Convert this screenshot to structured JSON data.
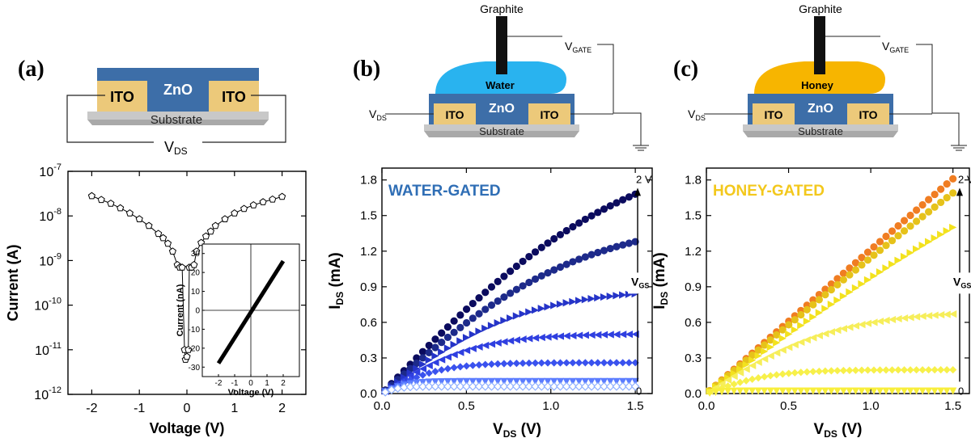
{
  "panels": {
    "a": {
      "label": "(a)",
      "device": {
        "layer_top": "ZnO",
        "electrode_left": "ITO",
        "electrode_right": "ITO",
        "substrate": "Substrate",
        "bias": "V",
        "bias_sub": "DS"
      }
    },
    "b": {
      "label": "(b)",
      "device": {
        "graphite": "Graphite",
        "gate": "V",
        "gate_sub": "GATE",
        "liquid": "Water",
        "layer_top": "ZnO",
        "electrode_left": "ITO",
        "electrode_right": "ITO",
        "substrate": "Substrate",
        "bias": "V",
        "bias_sub": "DS"
      }
    },
    "c": {
      "label": "(c)",
      "device": {
        "graphite": "Graphite",
        "gate": "V",
        "gate_sub": "GATE",
        "liquid": "Honey",
        "layer_top": "ZnO",
        "electrode_left": "ITO",
        "electrode_right": "ITO",
        "substrate": "Substrate",
        "bias": "V",
        "bias_sub": "DS"
      }
    }
  },
  "colors": {
    "zno": "#3d6ea8",
    "ito": "#ecc97a",
    "substrate": "#c8c8c8",
    "water": "#29b3ef",
    "honey": "#f7b500",
    "water_title": "#2f6eb5",
    "honey_title": "#f3c81c"
  },
  "chart_data": [
    {
      "id": "a",
      "type": "scatter",
      "xlabel": "Voltage (V)",
      "ylabel": "Current (A)",
      "yscale": "log",
      "xlim": [
        -2.5,
        2.5
      ],
      "ylim": [
        1e-12,
        1e-07
      ],
      "xticks": [
        "-2",
        "-1",
        "0",
        "1",
        "2"
      ],
      "yticks": [
        {
          "base": "10",
          "exp": "-12"
        },
        {
          "base": "10",
          "exp": "-11"
        },
        {
          "base": "10",
          "exp": "-10"
        },
        {
          "base": "10",
          "exp": "-9"
        },
        {
          "base": "10",
          "exp": "-8"
        },
        {
          "base": "10",
          "exp": "-7"
        }
      ],
      "series": [
        {
          "marker": "open-pentagon",
          "x": [
            -2.0,
            -1.8,
            -1.6,
            -1.4,
            -1.2,
            -1.0,
            -0.8,
            -0.6,
            -0.5,
            -0.4,
            -0.3,
            -0.2,
            -0.15,
            -0.1,
            -0.05,
            -0.03,
            0.0,
            0.03,
            0.05,
            0.1,
            0.15,
            0.2,
            0.3,
            0.4,
            0.5,
            0.6,
            0.8,
            1.0,
            1.2,
            1.4,
            1.6,
            1.8,
            2.0
          ],
          "y": [
            2.8e-08,
            2.3e-08,
            1.9e-08,
            1.5e-08,
            1.15e-08,
            8.5e-09,
            6e-09,
            4e-09,
            3.2e-09,
            2.4e-09,
            1.6e-09,
            8e-10,
            7e-10,
            7e-10,
            1e-11,
            6e-12,
            7e-12,
            1e-11,
            7e-10,
            7e-10,
            8e-10,
            1.6e-09,
            2.5e-09,
            3.5e-09,
            4.5e-09,
            6e-09,
            8.5e-09,
            1.15e-08,
            1.45e-08,
            1.75e-08,
            2.05e-08,
            2.35e-08,
            2.7e-08
          ]
        }
      ],
      "inset": {
        "type": "line",
        "xlabel": "Voltage (V)",
        "ylabel": "Current (nA)",
        "xlim": [
          -3,
          3
        ],
        "ylim": [
          -35,
          35
        ],
        "xticks": [
          "-2",
          "-1",
          "0",
          "1",
          "2"
        ],
        "yticks": [
          "-30",
          "-20",
          "-10",
          "0",
          "10",
          "20",
          "30"
        ],
        "series": [
          {
            "x": [
              -2.0,
              2.0
            ],
            "y": [
              -28,
              26
            ]
          }
        ]
      }
    },
    {
      "id": "b",
      "type": "scatter",
      "title": "WATER-GATED",
      "xlabel": "V",
      "xlabel_sub": "DS",
      "xlabel_unit": " (V)",
      "ylabel": "I",
      "ylabel_sub": "DS",
      "ylabel_unit": " (mA)",
      "xlim": [
        0.0,
        1.6
      ],
      "ylim": [
        0.0,
        1.9
      ],
      "xticks": [
        "0.0",
        "0.5",
        "1.0",
        "1.5"
      ],
      "yticks": [
        "0.0",
        "0.3",
        "0.6",
        "0.9",
        "1.2",
        "1.5",
        "1.8"
      ],
      "arrow_top": "2 V",
      "arrow_mid": "V",
      "arrow_mid_sub": "GS",
      "arrow_bottom": "0",
      "series": [
        {
          "marker": "circle",
          "color": "#0b0b5e",
          "isat": 1.68,
          "vsat": 1.5
        },
        {
          "marker": "circle",
          "color": "#1d2a8a",
          "isat": 1.28,
          "vsat": 1.2
        },
        {
          "marker": "triangle-right",
          "color": "#2534c8",
          "isat": 0.84,
          "vsat": 0.85
        },
        {
          "marker": "triangle-left",
          "color": "#2f3fe0",
          "isat": 0.5,
          "vsat": 0.55
        },
        {
          "marker": "diamond",
          "color": "#3a52ee",
          "isat": 0.26,
          "vsat": 0.35
        },
        {
          "marker": "triangle-down",
          "color": "#5b7cff",
          "isat": 0.1,
          "vsat": 0.15
        },
        {
          "marker": "diamond-open",
          "color": "#8fb0ff",
          "isat": 0.06,
          "vsat": 0.1
        }
      ]
    },
    {
      "id": "c",
      "type": "scatter",
      "title": "HONEY-GATED",
      "xlabel": "V",
      "xlabel_sub": "DS",
      "xlabel_unit": " (V)",
      "ylabel": "I",
      "ylabel_sub": "DS",
      "ylabel_unit": " (mA)",
      "xlim": [
        0.0,
        1.6
      ],
      "ylim": [
        0.0,
        1.9
      ],
      "xticks": [
        "0.0",
        "0.5",
        "1.0",
        "1.5"
      ],
      "yticks": [
        "0.0",
        "0.3",
        "0.6",
        "0.9",
        "1.2",
        "1.5",
        "1.8"
      ],
      "arrow_top": "2 V",
      "arrow_mid": "V",
      "arrow_mid_sub": "GS",
      "arrow_bottom": "0",
      "series": [
        {
          "marker": "circle",
          "color": "#f07d22",
          "isat": 1.81,
          "vsat": 9.0
        },
        {
          "marker": "circle",
          "color": "#e6c21a",
          "isat": 1.69,
          "vsat": 5.0
        },
        {
          "marker": "triangle-right",
          "color": "#f3e21e",
          "isat": 1.4,
          "vsat": 3.0
        },
        {
          "marker": "triangle-left",
          "color": "#f6ee5a",
          "isat": 0.67,
          "vsat": 0.8
        },
        {
          "marker": "diamond",
          "color": "#f7f04a",
          "isat": 0.2,
          "vsat": 0.4
        },
        {
          "marker": "triangle-down",
          "color": "#f8ee3a",
          "isat": 0.02,
          "vsat": 0.1
        }
      ]
    }
  ]
}
